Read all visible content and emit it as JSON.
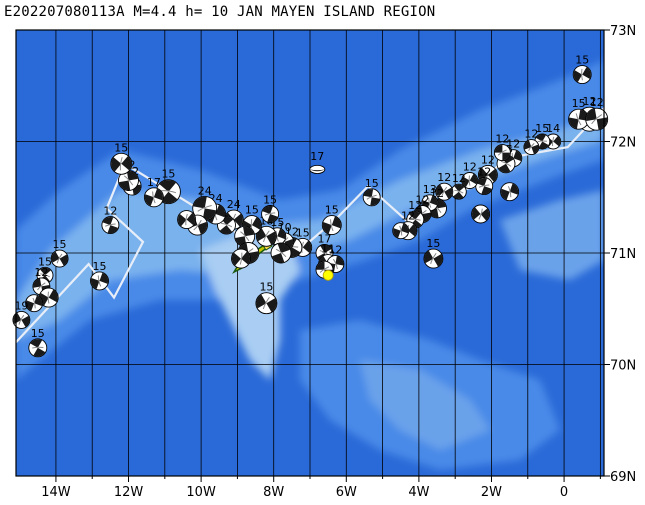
{
  "title": "E202207080113A  M=4.4  h= 10  JAN MAYEN ISLAND REGION",
  "region": "JAN MAYEN ISLAND REGION",
  "colors": {
    "ocean_deep": "#2a6ad8",
    "ocean_mid": "#4a8ae8",
    "ocean_shallow": "#7ab2ee",
    "ridge": "#a9cdf3",
    "grid": "#000000",
    "plate_boundary": "#e8eef8",
    "epicenter": "#ffff00",
    "island": "#c8c800",
    "island_edge": "#1a5a10"
  },
  "lon_ticks": [
    "14W",
    "12W",
    "10W",
    "8W",
    "6W",
    "4W",
    "2W",
    "0"
  ],
  "lat_ticks": [
    "73N",
    "72N",
    "71N",
    "70N",
    "69N"
  ],
  "extent": {
    "lon_min": -15.1,
    "lon_max": 1.1,
    "lat_min": 69.0,
    "lat_max": 73.0
  },
  "epicenter": {
    "lon": -6.5,
    "lat": 70.8
  },
  "plate_boundary": [
    [
      -15.1,
      70.2
    ],
    [
      -13.1,
      70.9
    ],
    [
      -12.4,
      70.6
    ],
    [
      -11.6,
      71.1
    ],
    [
      -12.6,
      71.4
    ],
    [
      -12.1,
      71.8
    ],
    [
      -11.1,
      71.6
    ],
    [
      -9.1,
      71.2
    ],
    [
      -8.6,
      71.0
    ],
    [
      -7.6,
      71.05
    ],
    [
      -7.2,
      71.05
    ],
    [
      -6.3,
      71.3
    ],
    [
      -5.4,
      71.6
    ],
    [
      -4.2,
      71.25
    ],
    [
      -3.6,
      71.5
    ],
    [
      -2.4,
      71.6
    ],
    [
      -1.6,
      71.85
    ],
    [
      0.1,
      71.95
    ],
    [
      1.1,
      72.3
    ]
  ],
  "mechanisms": [
    {
      "lon": 0.5,
      "lat": 72.6,
      "label": "15",
      "size": 18,
      "rot": 30
    },
    {
      "lon": 0.7,
      "lat": 72.2,
      "label": "12",
      "size": 24,
      "rot": 60
    },
    {
      "lon": 0.4,
      "lat": 72.2,
      "label": "15",
      "size": 20,
      "rot": 10
    },
    {
      "lon": 0.9,
      "lat": 72.2,
      "label": "12",
      "size": 22,
      "rot": 80
    },
    {
      "lon": -0.3,
      "lat": 72.0,
      "label": "14",
      "size": 15,
      "rot": 40
    },
    {
      "lon": -0.6,
      "lat": 72.0,
      "label": "15",
      "size": 15,
      "rot": 120
    },
    {
      "lon": -0.9,
      "lat": 71.95,
      "label": "12",
      "size": 15,
      "rot": 70
    },
    {
      "lon": -1.4,
      "lat": 71.85,
      "label": "12",
      "size": 17,
      "rot": 20
    },
    {
      "lon": -1.6,
      "lat": 71.8,
      "label": "15",
      "size": 18,
      "rot": 150
    },
    {
      "lon": -1.7,
      "lat": 71.9,
      "label": "12",
      "size": 16,
      "rot": 90
    },
    {
      "lon": -1.5,
      "lat": 71.55,
      "label": "",
      "size": 18,
      "rot": 200
    },
    {
      "lon": -2.1,
      "lat": 71.7,
      "label": "12",
      "size": 19,
      "rot": 50
    },
    {
      "lon": -2.2,
      "lat": 71.6,
      "label": "12",
      "size": 17,
      "rot": 110
    },
    {
      "lon": -2.3,
      "lat": 71.35,
      "label": "",
      "size": 18,
      "rot": 230
    },
    {
      "lon": -2.6,
      "lat": 71.65,
      "label": "12",
      "size": 16,
      "rot": 30
    },
    {
      "lon": -2.9,
      "lat": 71.55,
      "label": "12",
      "size": 15,
      "rot": 140
    },
    {
      "lon": -3.3,
      "lat": 71.55,
      "label": "12",
      "size": 17,
      "rot": 60
    },
    {
      "lon": -3.5,
      "lat": 71.4,
      "label": "12",
      "size": 19,
      "rot": 170
    },
    {
      "lon": -3.7,
      "lat": 71.45,
      "label": "13",
      "size": 16,
      "rot": 20
    },
    {
      "lon": -3.9,
      "lat": 71.35,
      "label": "12",
      "size": 17,
      "rot": 80
    },
    {
      "lon": -4.1,
      "lat": 71.3,
      "label": "12",
      "size": 17,
      "rot": 130
    },
    {
      "lon": -4.3,
      "lat": 71.2,
      "label": "12",
      "size": 18,
      "rot": 40
    },
    {
      "lon": -4.5,
      "lat": 71.2,
      "label": "",
      "size": 16,
      "rot": 200
    },
    {
      "lon": -3.6,
      "lat": 70.95,
      "label": "15",
      "size": 19,
      "rot": 60
    },
    {
      "lon": -5.3,
      "lat": 71.5,
      "label": "15",
      "size": 17,
      "rot": 100
    },
    {
      "lon": -6.4,
      "lat": 71.25,
      "label": "15",
      "size": 19,
      "rot": 20
    },
    {
      "lon": -6.6,
      "lat": 71.0,
      "label": "17",
      "size": 17,
      "rot": 150
    },
    {
      "lon": -6.5,
      "lat": 70.9,
      "label": "11",
      "size": 19,
      "rot": 60
    },
    {
      "lon": -6.3,
      "lat": 70.9,
      "label": "12",
      "size": 17,
      "rot": 190
    },
    {
      "lon": -6.6,
      "lat": 70.85,
      "label": "",
      "size": 17,
      "rot": 90
    },
    {
      "lon": -6.8,
      "lat": 71.75,
      "label": "17",
      "size": 15,
      "rot": 0,
      "flat": true
    },
    {
      "lon": -7.2,
      "lat": 71.05,
      "label": "15",
      "size": 18,
      "rot": 40
    },
    {
      "lon": -7.5,
      "lat": 71.05,
      "label": "12",
      "size": 20,
      "rot": 120
    },
    {
      "lon": -7.7,
      "lat": 71.1,
      "label": "10",
      "size": 18,
      "rot": 70
    },
    {
      "lon": -7.9,
      "lat": 71.15,
      "label": "15",
      "size": 17,
      "rot": 20
    },
    {
      "lon": -7.8,
      "lat": 71.0,
      "label": "",
      "size": 20,
      "rot": 160
    },
    {
      "lon": -8.2,
      "lat": 71.15,
      "label": "18",
      "size": 20,
      "rot": 60
    },
    {
      "lon": -8.1,
      "lat": 71.35,
      "label": "15",
      "size": 17,
      "rot": 110
    },
    {
      "lon": -8.6,
      "lat": 71.25,
      "label": "15",
      "size": 19,
      "rot": 30
    },
    {
      "lon": -8.8,
      "lat": 71.15,
      "label": "",
      "size": 20,
      "rot": 170
    },
    {
      "lon": -8.7,
      "lat": 71.0,
      "label": "",
      "size": 21,
      "rot": 80
    },
    {
      "lon": -8.9,
      "lat": 70.95,
      "label": "",
      "size": 19,
      "rot": 220
    },
    {
      "lon": -9.1,
      "lat": 71.3,
      "label": "24",
      "size": 19,
      "rot": 50
    },
    {
      "lon": -9.3,
      "lat": 71.25,
      "label": "",
      "size": 18,
      "rot": 140
    },
    {
      "lon": -9.6,
      "lat": 71.35,
      "label": "24",
      "size": 20,
      "rot": 20
    },
    {
      "lon": -9.9,
      "lat": 71.4,
      "label": "24",
      "size": 24,
      "rot": 100
    },
    {
      "lon": -10.1,
      "lat": 71.25,
      "label": "",
      "size": 20,
      "rot": 250
    },
    {
      "lon": -10.4,
      "lat": 71.3,
      "label": "",
      "size": 18,
      "rot": 40
    },
    {
      "lon": -8.2,
      "lat": 70.55,
      "label": "15",
      "size": 21,
      "rot": 60
    },
    {
      "lon": -10.9,
      "lat": 71.55,
      "label": "15",
      "size": 24,
      "rot": 130
    },
    {
      "lon": -11.3,
      "lat": 71.5,
      "label": "17",
      "size": 19,
      "rot": 20
    },
    {
      "lon": -11.9,
      "lat": 71.6,
      "label": "12",
      "size": 18,
      "rot": 80
    },
    {
      "lon": -12.0,
      "lat": 71.65,
      "label": "12",
      "size": 20,
      "rot": 170
    },
    {
      "lon": -12.2,
      "lat": 71.8,
      "label": "15",
      "size": 21,
      "rot": 40
    },
    {
      "lon": -12.5,
      "lat": 71.25,
      "label": "12",
      "size": 17,
      "rot": 110
    },
    {
      "lon": -13.9,
      "lat": 70.95,
      "label": "15",
      "size": 17,
      "rot": 60
    },
    {
      "lon": -12.8,
      "lat": 70.75,
      "label": "15",
      "size": 18,
      "rot": 20
    },
    {
      "lon": -14.3,
      "lat": 70.8,
      "label": "15",
      "size": 16,
      "rot": 140
    },
    {
      "lon": -14.4,
      "lat": 70.7,
      "label": "12",
      "size": 17,
      "rot": 80
    },
    {
      "lon": -14.2,
      "lat": 70.6,
      "label": "",
      "size": 19,
      "rot": 30
    },
    {
      "lon": -14.6,
      "lat": 70.55,
      "label": "",
      "size": 17,
      "rot": 200
    },
    {
      "lon": -14.95,
      "lat": 70.4,
      "label": "19",
      "size": 17,
      "rot": 60
    },
    {
      "lon": -14.5,
      "lat": 70.15,
      "label": "15",
      "size": 18,
      "rot": 120
    }
  ]
}
